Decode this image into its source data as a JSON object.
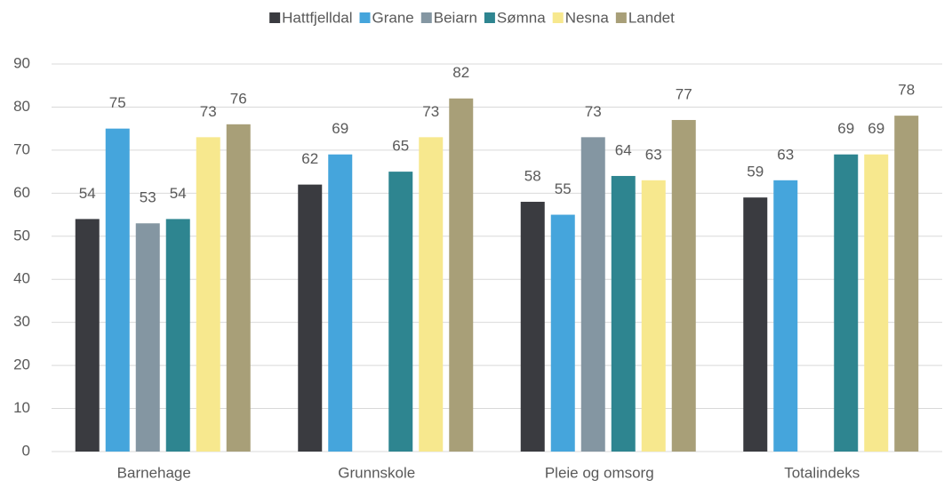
{
  "chart_data": {
    "type": "bar",
    "categories": [
      "Barnehage",
      "Grunnskole",
      "Pleie og omsorg",
      "Totalindeks"
    ],
    "series": [
      {
        "name": "Hattfjelldal",
        "color": "#3a3b40",
        "values": [
          54,
          62,
          58,
          59
        ]
      },
      {
        "name": "Grane",
        "color": "#45a5dc",
        "values": [
          75,
          69,
          55,
          63
        ]
      },
      {
        "name": "Beiarn",
        "color": "#8496a2",
        "values": [
          53,
          null,
          73,
          null
        ]
      },
      {
        "name": "Sømna",
        "color": "#2e8590",
        "values": [
          54,
          65,
          64,
          69
        ]
      },
      {
        "name": "Nesna",
        "color": "#f7e88e",
        "values": [
          73,
          73,
          63,
          69
        ]
      },
      {
        "name": "Landet",
        "color": "#a89f78",
        "values": [
          76,
          82,
          77,
          78
        ]
      }
    ],
    "ylim": [
      0,
      90
    ],
    "yticks": [
      0,
      10,
      20,
      30,
      40,
      50,
      60,
      70,
      80,
      90
    ],
    "grid": true,
    "legend": "top"
  }
}
